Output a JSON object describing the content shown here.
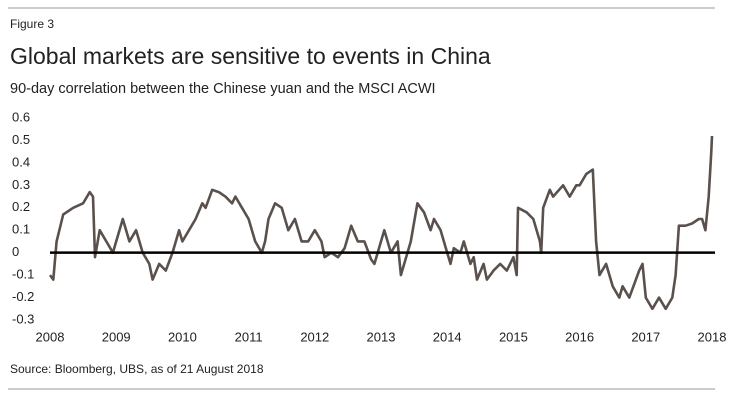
{
  "chart_data": {
    "type": "line",
    "figure_label": "Figure 3",
    "title": "Global markets are sensitive to events in China",
    "subtitle": "90-day correlation between the Chinese yuan and the MSCI ACWI",
    "source": "Source: Bloomberg, UBS, as of 21 August 2018",
    "xlim": [
      2008,
      2018
    ],
    "xticks": [
      2008,
      2009,
      2010,
      2011,
      2012,
      2013,
      2014,
      2015,
      2016,
      2017,
      2018
    ],
    "ylim": [
      -0.3,
      0.6
    ],
    "yticks": [
      -0.3,
      -0.2,
      -0.1,
      0,
      0.1,
      0.2,
      0.3,
      0.4,
      0.5,
      0.6
    ],
    "series": [
      {
        "color": "#5a514d",
        "x": [
          2008.0,
          2008.05,
          2008.1,
          2008.2,
          2008.35,
          2008.5,
          2008.6,
          2008.65,
          2008.68,
          2008.75,
          2008.85,
          2008.95,
          2009.0,
          2009.1,
          2009.2,
          2009.3,
          2009.4,
          2009.5,
          2009.55,
          2009.65,
          2009.75,
          2009.85,
          2009.95,
          2010.0,
          2010.1,
          2010.2,
          2010.3,
          2010.35,
          2010.45,
          2010.55,
          2010.65,
          2010.75,
          2010.8,
          2010.9,
          2011.0,
          2011.1,
          2011.2,
          2011.25,
          2011.3,
          2011.4,
          2011.5,
          2011.6,
          2011.7,
          2011.8,
          2011.9,
          2012.0,
          2012.1,
          2012.15,
          2012.25,
          2012.35,
          2012.45,
          2012.55,
          2012.65,
          2012.75,
          2012.85,
          2012.9,
          2013.0,
          2013.05,
          2013.15,
          2013.25,
          2013.3,
          2013.35,
          2013.45,
          2013.55,
          2013.65,
          2013.75,
          2013.8,
          2013.9,
          2014.0,
          2014.05,
          2014.1,
          2014.2,
          2014.25,
          2014.35,
          2014.4,
          2014.45,
          2014.55,
          2014.6,
          2014.7,
          2014.8,
          2014.9,
          2015.0,
          2015.05,
          2015.07,
          2015.2,
          2015.3,
          2015.4,
          2015.42,
          2015.45,
          2015.55,
          2015.6,
          2015.75,
          2015.85,
          2015.95,
          2016.0,
          2016.1,
          2016.2,
          2016.25,
          2016.3,
          2016.4,
          2016.5,
          2016.6,
          2016.65,
          2016.75,
          2016.85,
          2016.9,
          2016.95,
          2017.0,
          2017.1,
          2017.2,
          2017.3,
          2017.4,
          2017.45,
          2017.5,
          2017.6,
          2017.7,
          2017.8,
          2017.85,
          2017.9,
          2017.95,
          2017.97,
          2017.99,
          2018.0
        ],
        "values": [
          -0.1,
          -0.12,
          0.05,
          0.17,
          0.2,
          0.22,
          0.27,
          0.25,
          -0.02,
          0.1,
          0.05,
          0.0,
          0.05,
          0.15,
          0.05,
          0.1,
          0.0,
          -0.05,
          -0.12,
          -0.05,
          -0.08,
          0.0,
          0.1,
          0.05,
          0.1,
          0.15,
          0.22,
          0.2,
          0.28,
          0.27,
          0.25,
          0.22,
          0.25,
          0.2,
          0.15,
          0.05,
          0.0,
          0.05,
          0.15,
          0.22,
          0.2,
          0.1,
          0.15,
          0.05,
          0.05,
          0.1,
          0.05,
          -0.02,
          0.0,
          -0.02,
          0.02,
          0.12,
          0.05,
          0.05,
          -0.03,
          -0.05,
          0.05,
          0.1,
          0.0,
          0.05,
          -0.1,
          -0.05,
          0.05,
          0.22,
          0.18,
          0.1,
          0.15,
          0.1,
          0.0,
          -0.05,
          0.02,
          0.0,
          0.05,
          -0.05,
          -0.02,
          -0.12,
          -0.05,
          -0.12,
          -0.08,
          -0.05,
          -0.08,
          -0.02,
          -0.1,
          0.2,
          0.18,
          0.15,
          0.05,
          0.0,
          0.2,
          0.28,
          0.25,
          0.3,
          0.25,
          0.3,
          0.3,
          0.35,
          0.37,
          0.05,
          -0.1,
          -0.05,
          -0.15,
          -0.2,
          -0.15,
          -0.2,
          -0.12,
          -0.08,
          -0.05,
          -0.2,
          -0.25,
          -0.2,
          -0.25,
          -0.2,
          -0.1,
          0.12,
          0.12,
          0.13,
          0.15,
          0.15,
          0.1,
          0.25,
          0.35,
          0.45,
          0.52
        ]
      }
    ]
  }
}
